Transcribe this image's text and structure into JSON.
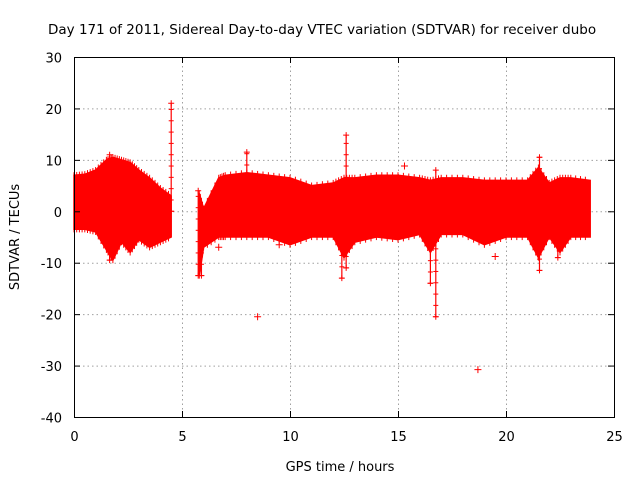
{
  "chart_data": {
    "type": "scatter",
    "title": "Day 171 of 2011, Sidereal Day-to-day VTEC variation (SDTVAR) for receiver dubo",
    "xlabel": "GPS time / hours",
    "ylabel": "SDTVAR / TECUs",
    "xlim": [
      0,
      25
    ],
    "ylim": [
      -40,
      30
    ],
    "xticks": [
      0,
      5,
      10,
      15,
      20,
      25
    ],
    "yticks": [
      -40,
      -30,
      -20,
      -10,
      0,
      10,
      20,
      30
    ],
    "grid": true,
    "series": [
      {
        "name": "SDTVAR",
        "color": "#ff0000",
        "marker": "plus",
        "envelope": [
          {
            "x": 0.0,
            "low": -3.5,
            "high": 7.0
          },
          {
            "x": 0.5,
            "low": -3.5,
            "high": 7.2
          },
          {
            "x": 1.0,
            "low": -4.0,
            "high": 8.0
          },
          {
            "x": 1.5,
            "low": -7.5,
            "high": 10.0
          },
          {
            "x": 1.8,
            "low": -9.5,
            "high": 10.5
          },
          {
            "x": 2.2,
            "low": -6.0,
            "high": 10.0
          },
          {
            "x": 2.6,
            "low": -8.0,
            "high": 9.5
          },
          {
            "x": 3.0,
            "low": -5.5,
            "high": 8.0
          },
          {
            "x": 3.5,
            "low": -7.0,
            "high": 6.5
          },
          {
            "x": 4.0,
            "low": -6.0,
            "high": 4.5
          },
          {
            "x": 4.5,
            "low": -5.0,
            "high": 3.0
          },
          {
            "x": 5.8,
            "low": -12.5,
            "high": 3.5
          },
          {
            "x": 6.0,
            "low": -7.0,
            "high": 0.5
          },
          {
            "x": 6.7,
            "low": -5.0,
            "high": 6.5
          },
          {
            "x": 7.0,
            "low": -5.0,
            "high": 7.0
          },
          {
            "x": 8.0,
            "low": -5.0,
            "high": 7.5
          },
          {
            "x": 9.0,
            "low": -5.0,
            "high": 7.0
          },
          {
            "x": 10.0,
            "low": -6.5,
            "high": 6.5
          },
          {
            "x": 11.0,
            "low": -5.0,
            "high": 5.0
          },
          {
            "x": 12.0,
            "low": -5.0,
            "high": 5.5
          },
          {
            "x": 12.5,
            "low": -9.0,
            "high": 6.5
          },
          {
            "x": 13.0,
            "low": -6.0,
            "high": 6.5
          },
          {
            "x": 14.0,
            "low": -5.0,
            "high": 7.0
          },
          {
            "x": 15.0,
            "low": -5.5,
            "high": 7.0
          },
          {
            "x": 16.0,
            "low": -4.5,
            "high": 6.5
          },
          {
            "x": 16.5,
            "low": -8.0,
            "high": 6.0
          },
          {
            "x": 17.0,
            "low": -4.5,
            "high": 6.5
          },
          {
            "x": 18.0,
            "low": -4.5,
            "high": 6.5
          },
          {
            "x": 19.0,
            "low": -6.5,
            "high": 6.0
          },
          {
            "x": 20.0,
            "low": -5.0,
            "high": 6.0
          },
          {
            "x": 21.0,
            "low": -5.0,
            "high": 6.0
          },
          {
            "x": 21.5,
            "low": -9.0,
            "high": 8.5
          },
          {
            "x": 22.0,
            "low": -5.0,
            "high": 5.5
          },
          {
            "x": 22.5,
            "low": -8.0,
            "high": 6.5
          },
          {
            "x": 23.0,
            "low": -5.0,
            "high": 6.5
          },
          {
            "x": 23.9,
            "low": -5.0,
            "high": 6.0
          }
        ],
        "spikes": [
          {
            "x": 1.65,
            "low": -9.5,
            "high": 11.0
          },
          {
            "x": 4.5,
            "low": 0.0,
            "high": 21.0
          },
          {
            "x": 5.75,
            "low": -12.5,
            "high": 4.0
          },
          {
            "x": 5.9,
            "low": -12.5,
            "high": 0.0
          },
          {
            "x": 8.0,
            "low": -2.0,
            "high": 11.5
          },
          {
            "x": 12.4,
            "low": -13.0,
            "high": 5.0
          },
          {
            "x": 12.6,
            "low": -11.0,
            "high": 14.8
          },
          {
            "x": 16.5,
            "low": -14.0,
            "high": 5.5
          },
          {
            "x": 16.75,
            "low": -20.5,
            "high": 8.0
          },
          {
            "x": 21.55,
            "low": -11.5,
            "high": 10.5
          },
          {
            "x": 22.4,
            "low": -9.0,
            "high": 4.0
          }
        ],
        "outliers": [
          {
            "x": 6.7,
            "y": -7.0
          },
          {
            "x": 8.5,
            "y": -20.5
          },
          {
            "x": 9.5,
            "y": -6.5
          },
          {
            "x": 18.7,
            "y": -30.8
          },
          {
            "x": 15.3,
            "y": 8.8
          },
          {
            "x": 19.5,
            "y": -8.8
          }
        ]
      }
    ]
  }
}
